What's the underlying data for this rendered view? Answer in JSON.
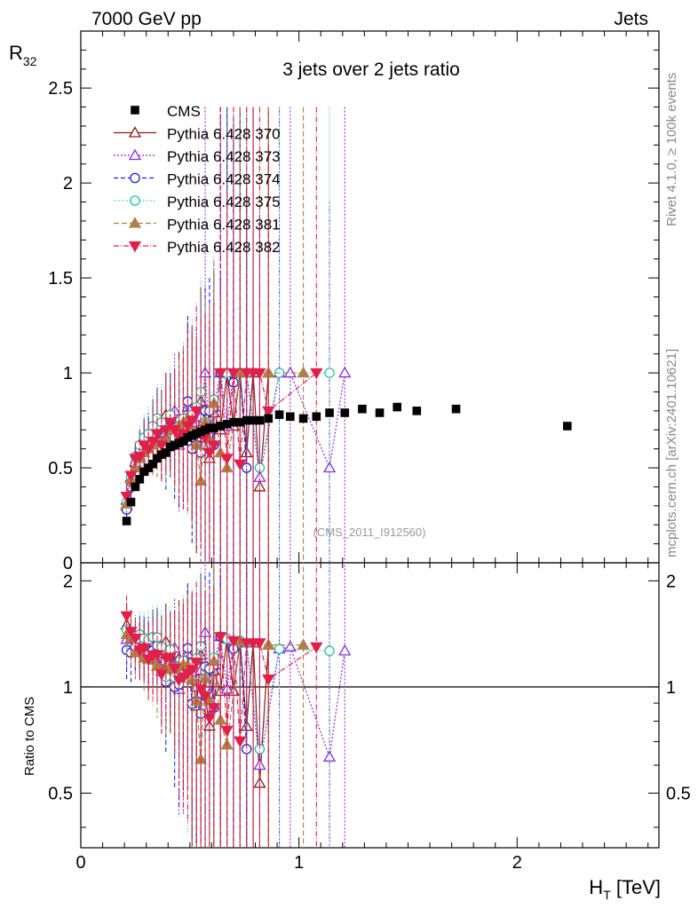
{
  "header": {
    "left": "7000 GeV pp",
    "right": "Jets"
  },
  "side_texts": {
    "rivet": "Rivet 4.1.0, ≥ 100k events",
    "mcplots": "mcplots.cern.ch [arXiv:2401.10621]"
  },
  "chart_data": {
    "type": "scatter",
    "title": "3 jets over 2 jets ratio",
    "analysis_label": "(CMS_2011_I912560)",
    "xlabel": "H_T [TeV]",
    "xlabel_main": "H",
    "xlabel_sub": "T",
    "xlabel_unit": " [TeV]",
    "ylabel": "R_32",
    "ylabel_main": "R",
    "ylabel_sub": "32",
    "ratio_ylabel": "Ratio to CMS",
    "xlim": [
      0,
      2.65
    ],
    "ylim": [
      0,
      2.8
    ],
    "ratio_ylim": [
      0.35,
      2.25
    ],
    "xticks": [
      0,
      1,
      2
    ],
    "yticks": [
      0,
      0.5,
      1,
      1.5,
      2,
      2.5
    ],
    "ytick_labels": [
      "0",
      "0.5",
      "1",
      "1.5",
      "2",
      "2.5"
    ],
    "ratio_yticks": [
      0.5,
      1,
      2
    ],
    "ratio_ytick_labels": [
      "0.5",
      "1",
      "2"
    ],
    "legend_position": "top-left",
    "cms": {
      "name": "CMS",
      "color": "#000000",
      "x": [
        0.21,
        0.23,
        0.25,
        0.27,
        0.29,
        0.31,
        0.33,
        0.35,
        0.37,
        0.39,
        0.41,
        0.43,
        0.45,
        0.47,
        0.49,
        0.51,
        0.53,
        0.55,
        0.57,
        0.59,
        0.61,
        0.64,
        0.67,
        0.7,
        0.73,
        0.76,
        0.79,
        0.82,
        0.86,
        0.91,
        0.96,
        1.02,
        1.08,
        1.14,
        1.21,
        1.29,
        1.37,
        1.45,
        1.54,
        1.72,
        2.23
      ],
      "y": [
        0.22,
        0.32,
        0.4,
        0.44,
        0.48,
        0.5,
        0.52,
        0.55,
        0.57,
        0.58,
        0.61,
        0.62,
        0.63,
        0.64,
        0.66,
        0.67,
        0.68,
        0.69,
        0.7,
        0.71,
        0.71,
        0.72,
        0.73,
        0.74,
        0.74,
        0.75,
        0.75,
        0.75,
        0.76,
        0.78,
        0.77,
        0.76,
        0.77,
        0.79,
        0.79,
        0.81,
        0.79,
        0.82,
        0.8,
        0.81,
        0.72
      ]
    },
    "series": [
      {
        "name": "Pythia 6.428 370",
        "color": "#8b1a1a",
        "marker": "triangle-up-open",
        "dash": "",
        "x": [
          0.21,
          0.23,
          0.25,
          0.27,
          0.29,
          0.31,
          0.33,
          0.35,
          0.37,
          0.39,
          0.41,
          0.43,
          0.45,
          0.47,
          0.49,
          0.51,
          0.53,
          0.55,
          0.57,
          0.59,
          0.61,
          0.64,
          0.67,
          0.7,
          0.73,
          0.76,
          0.79,
          0.82,
          0.86
        ],
        "y": [
          0.33,
          0.45,
          0.53,
          0.58,
          0.62,
          0.63,
          0.7,
          0.74,
          0.71,
          0.78,
          0.7,
          0.72,
          0.76,
          0.73,
          0.8,
          0.72,
          0.6,
          0.85,
          0.66,
          0.55,
          0.79,
          0.7,
          1.0,
          0.72,
          1.0,
          0.58,
          1.0,
          0.4,
          1.0
        ],
        "err": [
          0.05,
          0.07,
          0.08,
          0.1,
          0.12,
          0.14,
          0.16,
          0.18,
          0.2,
          0.22,
          0.25,
          0.3,
          0.35,
          0.4,
          0.45,
          0.5,
          0.55,
          0.6,
          0.65,
          0.7,
          0.75,
          0.8,
          1.4,
          1.5,
          1.4,
          1.4,
          1.4,
          1.4,
          1.4
        ]
      },
      {
        "name": "Pythia 6.428 373",
        "color": "#8a2be2",
        "marker": "triangle-up-open",
        "dash": "2,2",
        "x": [
          0.21,
          0.23,
          0.25,
          0.27,
          0.29,
          0.31,
          0.33,
          0.35,
          0.37,
          0.39,
          0.41,
          0.43,
          0.45,
          0.47,
          0.49,
          0.51,
          0.53,
          0.55,
          0.57,
          0.59,
          0.61,
          0.64,
          0.67,
          0.7,
          0.76,
          0.82,
          0.91,
          0.96,
          1.14,
          1.21
        ],
        "y": [
          0.3,
          0.44,
          0.5,
          0.56,
          0.6,
          0.65,
          0.68,
          0.7,
          0.63,
          0.66,
          0.72,
          0.8,
          0.62,
          0.68,
          0.82,
          0.74,
          0.68,
          0.77,
          1.0,
          0.68,
          0.82,
          1.0,
          0.72,
          1.0,
          1.0,
          0.45,
          1.0,
          1.0,
          0.5,
          1.0
        ],
        "err": [
          0.05,
          0.07,
          0.08,
          0.1,
          0.12,
          0.14,
          0.16,
          0.18,
          0.2,
          0.22,
          0.25,
          0.3,
          0.35,
          0.4,
          0.45,
          0.5,
          0.55,
          0.6,
          1.4,
          0.7,
          0.75,
          1.4,
          1.4,
          1.4,
          1.4,
          1.4,
          1.4,
          1.4,
          1.4,
          1.4
        ]
      },
      {
        "name": "Pythia 6.428 374",
        "color": "#1f1fdc",
        "marker": "circle-open",
        "dash": "5,3",
        "x": [
          0.21,
          0.23,
          0.25,
          0.27,
          0.29,
          0.31,
          0.33,
          0.35,
          0.37,
          0.39,
          0.41,
          0.43,
          0.45,
          0.47,
          0.49,
          0.51,
          0.53,
          0.55,
          0.57,
          0.59,
          0.61,
          0.64,
          0.67,
          0.7,
          0.73,
          0.76
        ],
        "y": [
          0.28,
          0.4,
          0.52,
          0.6,
          0.64,
          0.62,
          0.66,
          0.72,
          0.64,
          0.6,
          0.75,
          0.62,
          0.64,
          0.72,
          0.85,
          0.6,
          0.62,
          0.58,
          0.8,
          0.8,
          0.62,
          1.0,
          1.0,
          0.95,
          1.0,
          0.5
        ],
        "err": [
          0.05,
          0.07,
          0.08,
          0.1,
          0.12,
          0.14,
          0.16,
          0.18,
          0.2,
          0.22,
          0.25,
          0.3,
          0.35,
          0.4,
          0.45,
          0.5,
          0.55,
          0.6,
          0.65,
          0.7,
          0.75,
          1.4,
          1.4,
          1.4,
          1.4,
          1.4
        ]
      },
      {
        "name": "Pythia 6.428 375",
        "color": "#20c0b0",
        "marker": "circle-open",
        "dash": "1,2",
        "x": [
          0.21,
          0.23,
          0.25,
          0.27,
          0.29,
          0.31,
          0.33,
          0.35,
          0.37,
          0.39,
          0.41,
          0.43,
          0.45,
          0.47,
          0.49,
          0.51,
          0.53,
          0.55,
          0.57,
          0.61,
          0.67,
          0.73,
          0.76,
          0.82,
          0.91,
          1.14
        ],
        "y": [
          0.32,
          0.45,
          0.56,
          0.62,
          0.66,
          0.68,
          0.72,
          0.76,
          0.74,
          0.62,
          0.78,
          0.66,
          0.72,
          0.76,
          0.7,
          0.78,
          0.82,
          0.9,
          0.74,
          0.86,
          1.0,
          1.0,
          1.0,
          0.5,
          1.0,
          1.0
        ],
        "err": [
          0.05,
          0.07,
          0.08,
          0.1,
          0.12,
          0.14,
          0.16,
          0.18,
          0.2,
          0.22,
          0.25,
          0.3,
          0.35,
          0.4,
          0.45,
          0.5,
          0.55,
          0.6,
          0.65,
          0.75,
          1.4,
          1.4,
          1.4,
          1.4,
          1.4,
          1.4
        ]
      },
      {
        "name": "Pythia 6.428 381",
        "color": "#b0804a",
        "marker": "triangle-up-filled",
        "dash": "6,3",
        "x": [
          0.21,
          0.23,
          0.25,
          0.27,
          0.29,
          0.31,
          0.33,
          0.35,
          0.37,
          0.39,
          0.41,
          0.43,
          0.45,
          0.47,
          0.49,
          0.51,
          0.53,
          0.55,
          0.57,
          0.59,
          0.61,
          0.64,
          0.67,
          0.73,
          0.86,
          1.02
        ],
        "y": [
          0.31,
          0.44,
          0.5,
          0.55,
          0.58,
          0.6,
          0.62,
          0.63,
          0.64,
          0.65,
          0.7,
          0.7,
          0.72,
          0.74,
          0.76,
          0.7,
          0.62,
          0.43,
          0.74,
          0.65,
          0.84,
          0.58,
          0.5,
          1.0,
          1.0,
          1.0
        ],
        "err": [
          0.05,
          0.07,
          0.08,
          0.1,
          0.12,
          0.14,
          0.16,
          0.18,
          0.2,
          0.22,
          0.25,
          0.3,
          0.35,
          0.4,
          0.45,
          0.5,
          0.55,
          0.6,
          0.65,
          0.7,
          0.75,
          0.8,
          1.4,
          1.4,
          1.4,
          1.4
        ]
      },
      {
        "name": "Pythia 6.428 382",
        "color": "#e0204a",
        "marker": "triangle-down-filled",
        "dash": "6,2,1,2",
        "x": [
          0.21,
          0.23,
          0.25,
          0.27,
          0.29,
          0.31,
          0.33,
          0.35,
          0.37,
          0.39,
          0.41,
          0.43,
          0.45,
          0.47,
          0.49,
          0.51,
          0.53,
          0.55,
          0.57,
          0.59,
          0.61,
          0.64,
          0.67,
          0.7,
          0.73,
          0.76,
          0.79,
          0.82,
          0.86,
          1.08
        ],
        "y": [
          0.35,
          0.46,
          0.55,
          0.56,
          0.62,
          0.6,
          0.64,
          0.68,
          0.62,
          0.7,
          0.74,
          0.7,
          0.66,
          0.68,
          0.72,
          0.75,
          0.8,
          0.68,
          0.66,
          0.58,
          0.62,
          1.0,
          0.55,
          1.0,
          0.52,
          1.0,
          1.0,
          1.0,
          0.8,
          1.0
        ],
        "err": [
          0.05,
          0.07,
          0.08,
          0.1,
          0.12,
          0.14,
          0.16,
          0.18,
          0.2,
          0.22,
          0.25,
          0.3,
          0.35,
          0.4,
          0.45,
          0.5,
          0.55,
          0.6,
          0.65,
          0.7,
          0.75,
          1.4,
          1.4,
          1.4,
          1.4,
          1.4,
          1.4,
          1.4,
          1.4,
          1.4
        ]
      }
    ]
  }
}
